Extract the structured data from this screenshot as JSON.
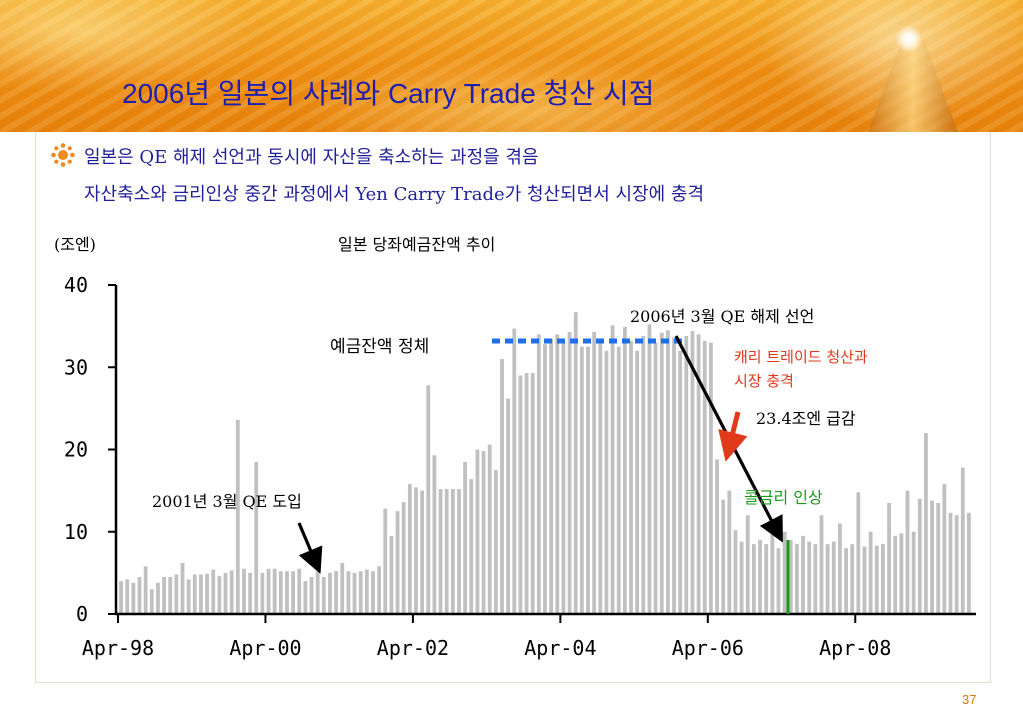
{
  "slide": {
    "title": "2006년 일본의 사례와 Carry Trade 청산 시점",
    "page_number": "37",
    "bullets": [
      "일본은 QE 해제 선언과 동시에 자산을 축소하는 과정을 겪음",
      "자산축소와 금리인상 중간 과정에서 Yen Carry Trade가 청산되면서 시장에 충격"
    ]
  },
  "colors": {
    "title": "#1f1fb0",
    "bullet_text": "#1f1f9c",
    "bars": "#c0c0c0",
    "stagnation_line": "#1f6fe8",
    "red_note": "#e03a1a",
    "green_note": "#1c9a1c",
    "axis": "#000000"
  },
  "chart_data": {
    "type": "bar",
    "title": "일본 당좌예금잔액 추이",
    "ylabel": "(조엔)",
    "ylim": [
      0,
      40
    ],
    "yticks": [
      "0",
      "10",
      "20",
      "30",
      "40"
    ],
    "xticks": [
      "Apr-98",
      "Apr-00",
      "Apr-02",
      "Apr-04",
      "Apr-06",
      "Apr-08"
    ],
    "x_start": "Apr-98",
    "x_end": "Oct-09",
    "values": [
      4.0,
      4.2,
      3.8,
      4.5,
      5.8,
      3.0,
      3.8,
      4.5,
      4.5,
      4.8,
      6.2,
      4.2,
      4.8,
      4.8,
      4.9,
      5.4,
      4.6,
      5.0,
      5.3,
      23.6,
      5.5,
      5.0,
      18.5,
      5.0,
      5.5,
      5.5,
      5.2,
      5.2,
      5.2,
      5.5,
      4.0,
      4.5,
      5.2,
      4.5,
      5.0,
      5.2,
      6.2,
      5.2,
      5.0,
      5.2,
      5.4,
      5.2,
      5.8,
      12.8,
      9.5,
      12.5,
      13.6,
      15.8,
      15.4,
      15.0,
      27.8,
      19.3,
      15.2,
      15.2,
      15.2,
      15.2,
      18.5,
      16.4,
      20.0,
      19.8,
      20.6,
      17.5,
      31.0,
      26.2,
      34.7,
      29.0,
      29.3,
      29.3,
      34.0,
      32.8,
      33.5,
      34.0,
      33.2,
      34.3,
      36.7,
      32.5,
      32.5,
      34.3,
      33.4,
      32.0,
      35.1,
      32.5,
      34.9,
      33.2,
      32.0,
      33.8,
      35.2,
      33.0,
      34.2,
      34.5,
      33.6,
      32.0,
      33.8,
      34.4,
      34.0,
      33.2,
      33.0,
      18.8,
      13.9,
      15.0,
      10.2,
      8.8,
      12.0,
      8.5,
      9.0,
      8.5,
      10.5,
      8.0,
      10.0,
      9.0,
      8.5,
      9.5,
      8.8,
      8.5,
      12.0,
      8.5,
      8.8,
      11.0,
      8.0,
      8.5,
      14.8,
      8.2,
      10.0,
      8.3,
      8.5,
      13.5,
      9.5,
      9.8,
      15.0,
      10.0,
      14.0,
      22.0,
      13.8,
      13.5,
      15.8,
      12.3,
      12.0,
      17.8,
      12.3
    ],
    "annotations": {
      "stagnation_label": "예금잔액 정체",
      "qe_intro": "2001년 3월 QE 도입",
      "qe_end": "2006년 3월 QE 해제 선언",
      "carry_unwind_line1": "캐리 트레이드 청산과",
      "carry_unwind_line2": "시장 충격",
      "sharp_drop": "23.4조엔 급감",
      "rate_hike": "콜금리 인상"
    }
  }
}
